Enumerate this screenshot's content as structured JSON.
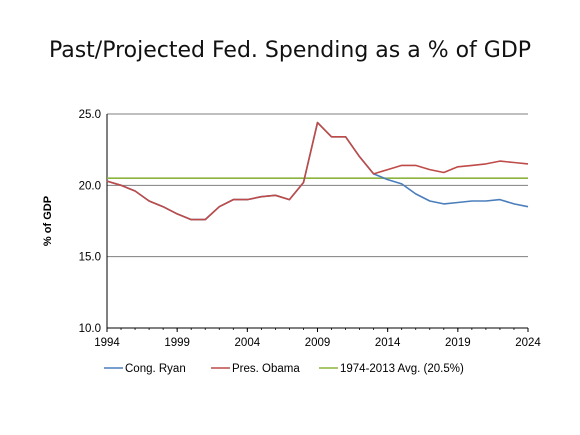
{
  "colors": {
    "ryan": "#4a7ebb",
    "obama": "#be4b48",
    "avg": "#8cb43c",
    "grid": "#7f7f7f"
  },
  "chart_data": {
    "type": "line",
    "title": "Past/Projected Fed. Spending as a % of GDP",
    "ylabel": "% of GDP",
    "xlim": [
      1994,
      2024
    ],
    "ylim": [
      10,
      25
    ],
    "xticks": [
      "1994",
      "1999",
      "2004",
      "2009",
      "2014",
      "2019",
      "2024"
    ],
    "yticks": [
      "10.0",
      "15.0",
      "20.0",
      "25.0"
    ],
    "grid": true,
    "legend": "bottom",
    "x": [
      1994,
      1995,
      1996,
      1997,
      1998,
      1999,
      2000,
      2001,
      2002,
      2003,
      2004,
      2005,
      2006,
      2007,
      2008,
      2009,
      2010,
      2011,
      2012,
      2013,
      2014,
      2015,
      2016,
      2017,
      2018,
      2019,
      2020,
      2021,
      2022,
      2023,
      2024
    ],
    "series": [
      {
        "name": "Cong. Ryan",
        "values": [
          20.3,
          20.0,
          19.6,
          18.9,
          18.5,
          18.0,
          17.6,
          17.6,
          18.5,
          19.0,
          19.0,
          19.2,
          19.3,
          19.0,
          20.2,
          24.4,
          23.4,
          23.4,
          22.0,
          20.8,
          20.4,
          20.1,
          19.4,
          18.9,
          18.7,
          18.8,
          18.9,
          18.9,
          19.0,
          18.7,
          18.5
        ]
      },
      {
        "name": "Pres. Obama",
        "values": [
          20.3,
          20.0,
          19.6,
          18.9,
          18.5,
          18.0,
          17.6,
          17.6,
          18.5,
          19.0,
          19.0,
          19.2,
          19.3,
          19.0,
          20.2,
          24.4,
          23.4,
          23.4,
          22.0,
          20.8,
          21.1,
          21.4,
          21.4,
          21.1,
          20.9,
          21.3,
          21.4,
          21.5,
          21.7,
          21.6,
          21.5
        ]
      },
      {
        "name": "1974-2013 Avg. (20.5%)",
        "values": [
          20.5,
          20.5,
          20.5,
          20.5,
          20.5,
          20.5,
          20.5,
          20.5,
          20.5,
          20.5,
          20.5,
          20.5,
          20.5,
          20.5,
          20.5,
          20.5,
          20.5,
          20.5,
          20.5,
          20.5,
          20.5,
          20.5,
          20.5,
          20.5,
          20.5,
          20.5,
          20.5,
          20.5,
          20.5,
          20.5,
          20.5
        ]
      }
    ]
  }
}
